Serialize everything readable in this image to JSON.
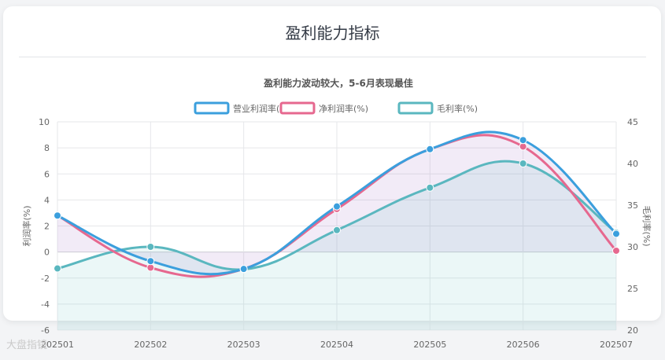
{
  "card": {
    "title": "盈利能力指标",
    "subtitle": "盈利能力波动较大，5-6月表现最佳"
  },
  "watermark": "大盘指镜",
  "chart_data": {
    "type": "line",
    "categories": [
      "202501",
      "202502",
      "202503",
      "202504",
      "202505",
      "202506",
      "202507"
    ],
    "series": [
      {
        "name": "营业利润率(%)",
        "axis": "left",
        "color": "#3b9fdd",
        "fill": "rgba(150,90,190,0.12)",
        "values": [
          2.8,
          -0.7,
          -1.3,
          3.5,
          7.9,
          8.6,
          1.4
        ]
      },
      {
        "name": "净利润率(%)",
        "axis": "left",
        "color": "#e6688f",
        "fill": null,
        "values": [
          2.8,
          -1.2,
          -1.3,
          3.3,
          7.9,
          8.1,
          0.1
        ]
      },
      {
        "name": "毛利率(%)",
        "axis": "right",
        "color": "#5ab7bf",
        "fill": "rgba(90,190,190,0.12)",
        "values": [
          27.4,
          30.0,
          27.3,
          32.0,
          37.1,
          40.0,
          31.7
        ]
      }
    ],
    "y_left": {
      "label": "利润率(%)",
      "min": -6,
      "max": 10,
      "step": 2
    },
    "y_right": {
      "label": "毛利率(%)",
      "min": 20,
      "max": 45,
      "step": 5
    },
    "legend_position": "top-center",
    "grid": true
  }
}
